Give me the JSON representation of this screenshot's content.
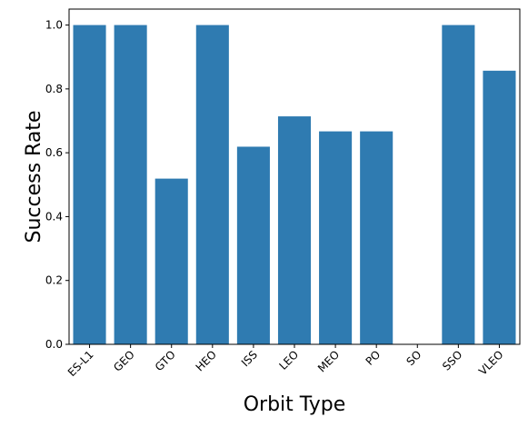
{
  "chart_data": {
    "type": "bar",
    "categories": [
      "ES-L1",
      "GEO",
      "GTO",
      "HEO",
      "ISS",
      "LEO",
      "MEO",
      "PO",
      "SO",
      "SSO",
      "VLEO"
    ],
    "values": [
      1.0,
      1.0,
      0.519,
      1.0,
      0.619,
      0.714,
      0.667,
      0.667,
      0.0,
      1.0,
      0.857
    ],
    "xlabel": "Orbit Type",
    "ylabel": "Success Rate",
    "ylim": [
      0,
      1.05
    ],
    "yticks": [
      0.0,
      0.2,
      0.4,
      0.6,
      0.8,
      1.0
    ],
    "ytick_labels": [
      "0.0",
      "0.2",
      "0.4",
      "0.6",
      "0.8",
      "1.0"
    ],
    "bar_color": "#2f7bb1",
    "grid": false,
    "legend": "none"
  }
}
